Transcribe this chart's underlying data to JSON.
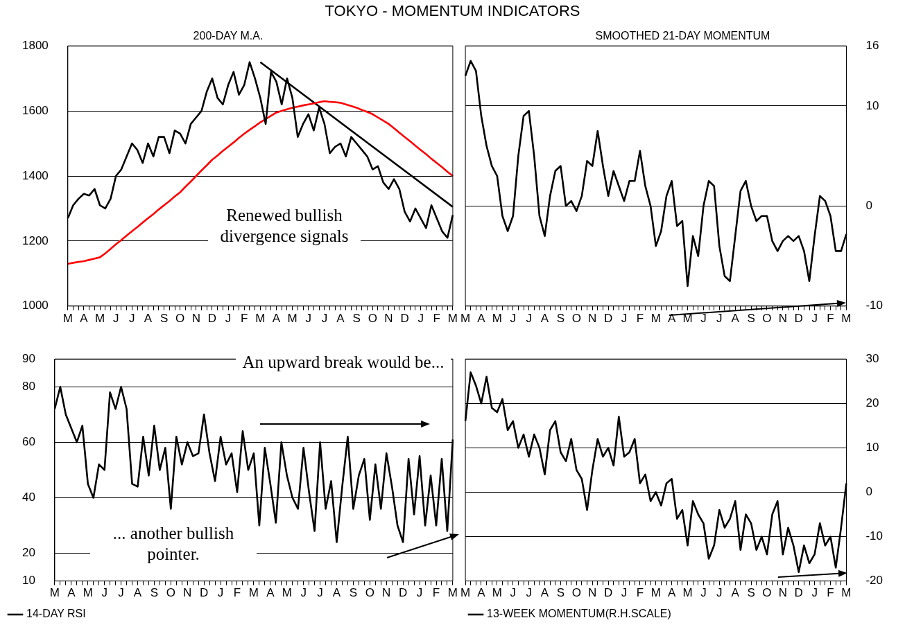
{
  "chart_data": [
    {
      "type": "line",
      "title": "TOKYO - MOMENTUM INDICATORS",
      "subtitle": "200-DAY M.A.",
      "categories": [
        "M",
        null,
        null,
        "A",
        null,
        null,
        "M",
        null,
        null,
        "J",
        null,
        null,
        "J",
        null,
        null,
        "A",
        null,
        null,
        "S",
        null,
        null,
        "O",
        null,
        null,
        "N",
        null,
        null,
        "D",
        null,
        null,
        "J",
        null,
        null,
        "F",
        null,
        null,
        "M",
        null,
        null,
        "A",
        null,
        null,
        "M",
        null,
        null,
        "J",
        null,
        null,
        "J",
        null,
        null,
        "A",
        null,
        null,
        "S",
        null,
        null,
        "O",
        null,
        null,
        "N",
        null,
        null,
        "D",
        null,
        null,
        "J",
        null,
        null,
        "F",
        null,
        null,
        "M"
      ],
      "series": [
        {
          "color": "#000000",
          "values": [
            1270,
            1310,
            1330,
            1345,
            1340,
            1360,
            1310,
            1300,
            1330,
            1400,
            1420,
            1460,
            1500,
            1480,
            1440,
            1500,
            1460,
            1520,
            1520,
            1470,
            1540,
            1530,
            1500,
            1560,
            1580,
            1600,
            1660,
            1700,
            1640,
            1620,
            1680,
            1720,
            1650,
            1680,
            1750,
            1700,
            1640,
            1560,
            1720,
            1690,
            1620,
            1700,
            1640,
            1520,
            1560,
            1590,
            1540,
            1610,
            1560,
            1470,
            1490,
            1500,
            1460,
            1520,
            1500,
            1480,
            1460,
            1420,
            1430,
            1380,
            1360,
            1390,
            1360,
            1290,
            1260,
            1300,
            1270,
            1240,
            1310,
            1270,
            1230,
            1210,
            1280
          ]
        },
        {
          "color": "#ff0000",
          "values": [
            1130,
            1133,
            1136,
            1138,
            1142,
            1146,
            1150,
            1162,
            1176,
            1190,
            1203,
            1217,
            1230,
            1243,
            1257,
            1270,
            1283,
            1297,
            1310,
            1323,
            1337,
            1350,
            1367,
            1383,
            1400,
            1417,
            1433,
            1450,
            1463,
            1477,
            1490,
            1503,
            1517,
            1530,
            1542,
            1553,
            1565,
            1575,
            1585,
            1595,
            1600,
            1605,
            1610,
            1613,
            1617,
            1620,
            1623,
            1627,
            1630,
            1628,
            1627,
            1625,
            1620,
            1615,
            1610,
            1603,
            1597,
            1590,
            1580,
            1570,
            1560,
            1547,
            1533,
            1520,
            1507,
            1493,
            1480,
            1467,
            1453,
            1440,
            1427,
            1413,
            1400
          ]
        },
        {
          "color": "#000000",
          "values": [
            null,
            null,
            null,
            null,
            null,
            null,
            null,
            null,
            null,
            null,
            null,
            null,
            null,
            null,
            null,
            null,
            null,
            null,
            null,
            null,
            null,
            null,
            null,
            null,
            null,
            null,
            null,
            null,
            null,
            null,
            null,
            null,
            null,
            null,
            null,
            null,
            1750,
            null,
            null,
            null,
            null,
            null,
            null,
            null,
            null,
            null,
            null,
            null,
            null,
            null,
            null,
            null,
            null,
            null,
            null,
            null,
            null,
            null,
            null,
            null,
            null,
            null,
            null,
            null,
            null,
            null,
            null,
            null,
            null,
            null,
            null,
            null,
            1305
          ]
        }
      ],
      "ylim": [
        1000,
        1800
      ],
      "yticks": [
        1000,
        1200,
        1400,
        1600,
        1800
      ],
      "grid": "y",
      "legend": false,
      "annotations": [
        "Renewed bullish divergence signals"
      ]
    },
    {
      "type": "line",
      "subtitle": "SMOOTHED 21-DAY MOMENTUM",
      "categories": [
        "M",
        null,
        null,
        "A",
        null,
        null,
        "M",
        null,
        null,
        "J",
        null,
        null,
        "J",
        null,
        null,
        "A",
        null,
        null,
        "S",
        null,
        null,
        "O",
        null,
        null,
        "N",
        null,
        null,
        "D",
        null,
        null,
        "J",
        null,
        null,
        "F",
        null,
        null,
        "M",
        null,
        null,
        "A",
        null,
        null,
        "M",
        null,
        null,
        "J",
        null,
        null,
        "J",
        null,
        null,
        "A",
        null,
        null,
        "S",
        null,
        null,
        "O",
        null,
        null,
        "N",
        null,
        null,
        "D",
        null,
        null,
        "J",
        null,
        null,
        "F",
        null,
        null,
        "M"
      ],
      "series": [
        {
          "color": "#000000",
          "values": [
            13,
            14.5,
            13.5,
            9,
            6,
            4,
            3,
            -1,
            -2.5,
            -1,
            5,
            9,
            9.5,
            5,
            -1,
            -3,
            1,
            3.5,
            4,
            0,
            0.5,
            -0.5,
            1,
            4.5,
            4,
            7.5,
            4,
            1,
            3.5,
            2,
            0.5,
            2.5,
            2.5,
            5.5,
            2,
            0,
            -4,
            -2.5,
            1,
            2.5,
            -2,
            -1.5,
            -8,
            -3,
            -5,
            0,
            2.5,
            2,
            -4,
            -7,
            -7.5,
            -3,
            1.5,
            2.5,
            0,
            -1.5,
            -1,
            -1,
            -3.5,
            -4.5,
            -3.5,
            -3,
            -3.5,
            -3,
            -4.5,
            -7.5,
            -3,
            1,
            0.5,
            -1,
            -4.5,
            -4.5,
            -2.8
          ]
        }
      ],
      "ylim": [
        -10,
        16
      ],
      "yticks": [
        -10,
        0,
        10,
        16
      ],
      "grid": "y",
      "legend": false
    },
    {
      "type": "line",
      "categories": [
        "M",
        null,
        null,
        "A",
        null,
        null,
        "M",
        null,
        null,
        "J",
        null,
        null,
        "J",
        null,
        null,
        "A",
        null,
        null,
        "S",
        null,
        null,
        "O",
        null,
        null,
        "N",
        null,
        null,
        "D",
        null,
        null,
        "J",
        null,
        null,
        "F",
        null,
        null,
        "M",
        null,
        null,
        "A",
        null,
        null,
        "M",
        null,
        null,
        "J",
        null,
        null,
        "J",
        null,
        null,
        "A",
        null,
        null,
        "S",
        null,
        null,
        "O",
        null,
        null,
        "N",
        null,
        null,
        "D",
        null,
        null,
        "J",
        null,
        null,
        "F",
        null,
        null,
        "M"
      ],
      "series": [
        {
          "name": "14-DAY RSI",
          "color": "#000000",
          "values": [
            72,
            80,
            70,
            65,
            60,
            66,
            45,
            40,
            52,
            50,
            78,
            72,
            80,
            72,
            45,
            44,
            62,
            48,
            66,
            50,
            58,
            36,
            62,
            52,
            60,
            55,
            56,
            70,
            56,
            46,
            62,
            52,
            56,
            42,
            64,
            50,
            56,
            30,
            58,
            45,
            31,
            60,
            48,
            40,
            36,
            58,
            42,
            28,
            60,
            36,
            46,
            24,
            44,
            62,
            36,
            48,
            54,
            32,
            52,
            36,
            56,
            44,
            30,
            24,
            54,
            34,
            55,
            30,
            48,
            30,
            54,
            28,
            61
          ]
        }
      ],
      "ylim": [
        10,
        90
      ],
      "yticks": [
        10,
        20,
        40,
        60,
        80,
        90
      ],
      "grid": "y",
      "legend": "bottom left",
      "annotations": [
        "An upward break would be...",
        "... another bullish pointer."
      ]
    },
    {
      "type": "line",
      "categories": [
        "M",
        null,
        null,
        "A",
        null,
        null,
        "M",
        null,
        null,
        "J",
        null,
        null,
        "J",
        null,
        null,
        "A",
        null,
        null,
        "S",
        null,
        null,
        "O",
        null,
        null,
        "N",
        null,
        null,
        "D",
        null,
        null,
        "J",
        null,
        null,
        "F",
        null,
        null,
        "M",
        null,
        null,
        "A",
        null,
        null,
        "M",
        null,
        null,
        "J",
        null,
        null,
        "J",
        null,
        null,
        "A",
        null,
        null,
        "S",
        null,
        null,
        "O",
        null,
        null,
        "N",
        null,
        null,
        "D",
        null,
        null,
        "J",
        null,
        null,
        "F",
        null,
        null,
        "M"
      ],
      "series": [
        {
          "name": "13-WEEK MOMENTUM(R.H.SCALE)",
          "color": "#000000",
          "values": [
            16,
            27,
            24,
            20,
            26,
            19,
            18,
            21,
            14,
            16,
            10,
            13,
            8,
            13,
            10,
            4,
            14,
            16,
            9,
            7,
            12,
            5,
            3,
            -4,
            5,
            12,
            8,
            10,
            6,
            17,
            8,
            9,
            12,
            2,
            4,
            -2,
            0,
            -3,
            2,
            3,
            -6,
            -4,
            -12,
            -2,
            -5,
            -7,
            -15,
            -12,
            -4,
            -8,
            -6,
            -2,
            -13,
            -5,
            -7,
            -13,
            -10,
            -14,
            -5,
            -2,
            -14,
            -8,
            -12,
            -18,
            -12,
            -16,
            -14,
            -7,
            -12,
            -10,
            -17,
            -8,
            2
          ]
        }
      ],
      "ylim": [
        -20,
        30
      ],
      "yticks": [
        -20,
        -10,
        0,
        10,
        20,
        30
      ],
      "grid": "y",
      "legend": "bottom left"
    }
  ]
}
